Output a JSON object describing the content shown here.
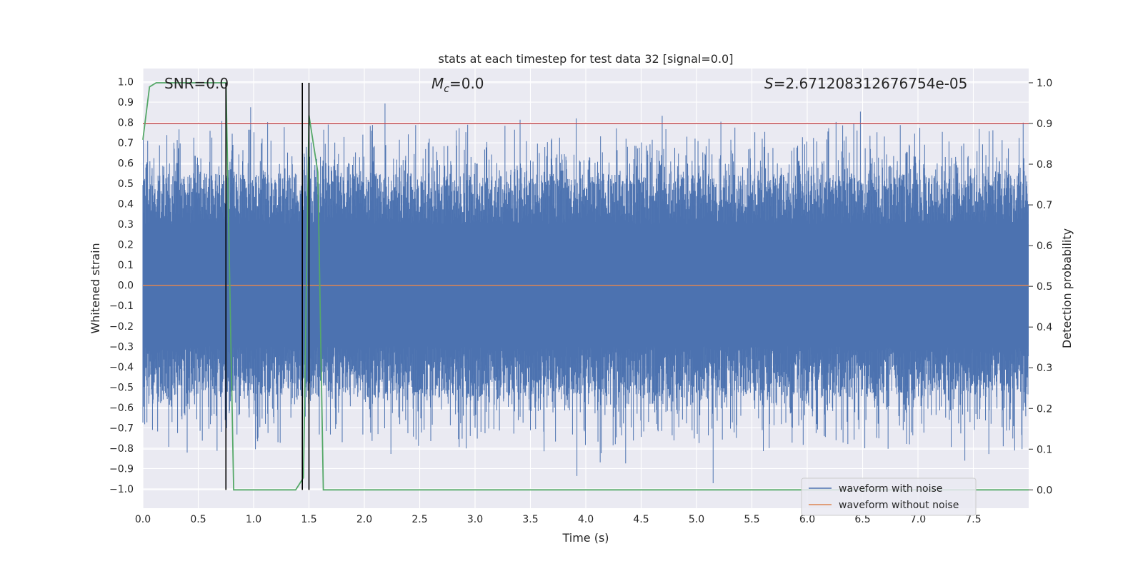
{
  "chart_data": {
    "type": "line",
    "title": "stats at each timestep for test data 32 [signal=0.0]",
    "xlabel": "Time (s)",
    "ylabel": "Whitened strain",
    "y2label": "Detection probability",
    "xlim": [
      0.0,
      8.0
    ],
    "ylim": [
      -1.095,
      1.065
    ],
    "y2lim": [
      -0.045,
      1.035
    ],
    "xticks": [
      "0.0",
      "0.5",
      "1.0",
      "1.5",
      "2.0",
      "2.5",
      "3.0",
      "3.5",
      "4.0",
      "4.5",
      "5.0",
      "5.5",
      "6.0",
      "6.5",
      "7.0",
      "7.5"
    ],
    "xtick_values": [
      0.0,
      0.5,
      1.0,
      1.5,
      2.0,
      2.5,
      3.0,
      3.5,
      4.0,
      4.5,
      5.0,
      5.5,
      6.0,
      6.5,
      7.0,
      7.5
    ],
    "yticks": [
      "1.0",
      "0.9",
      "0.8",
      "0.7",
      "0.6",
      "0.5",
      "0.4",
      "0.3",
      "0.2",
      "0.1",
      "0.0",
      "−0.1",
      "−0.2",
      "−0.3",
      "−0.4",
      "−0.5",
      "−0.6",
      "−0.7",
      "−0.8",
      "−0.9",
      "−1.0"
    ],
    "ytick_values": [
      1.0,
      0.9,
      0.8,
      0.7,
      0.6,
      0.5,
      0.4,
      0.3,
      0.2,
      0.1,
      0.0,
      -0.1,
      -0.2,
      -0.3,
      -0.4,
      -0.5,
      -0.6,
      -0.7,
      -0.8,
      -0.9,
      -1.0
    ],
    "y2ticks": [
      "1.0",
      "0.9",
      "0.8",
      "0.7",
      "0.6",
      "0.5",
      "0.4",
      "0.3",
      "0.2",
      "0.1",
      "0.0"
    ],
    "y2tick_values": [
      1.0,
      0.9,
      0.8,
      0.7,
      0.6,
      0.5,
      0.4,
      0.3,
      0.2,
      0.1,
      0.0
    ],
    "annotations": {
      "snr": "SNR=0.0",
      "mc_symbol": "M",
      "mc_sub": "c",
      "mc_value": "=0.0",
      "s_symbol": "S",
      "s_value": "=2.671208312676754e-05"
    },
    "legend": {
      "position": "lower-right",
      "entries": [
        "waveform with noise",
        "waveform without noise"
      ]
    },
    "series": [
      {
        "name": "waveform with noise",
        "color": "#4c72b0",
        "axis": "left",
        "style": "dense-noise",
        "peak_max": 1.0,
        "trough_min": -1.0
      },
      {
        "name": "waveform without noise",
        "color": "#dd8452",
        "axis": "left",
        "y_constant": 0.0
      },
      {
        "name": "detection probability",
        "color": "#55a868",
        "axis": "right",
        "x": [
          0.0,
          0.06,
          0.12,
          0.5,
          0.75,
          0.82,
          0.9,
          1.38,
          1.45,
          1.5,
          1.58,
          1.63,
          1.7,
          8.0
        ],
        "y": [
          0.86,
          0.99,
          1.0,
          1.0,
          1.0,
          0.0,
          0.0,
          0.0,
          0.03,
          0.92,
          0.78,
          0.0,
          0.0,
          0.0
        ]
      },
      {
        "name": "threshold",
        "color": "#c44e52",
        "axis": "right",
        "y_constant": 0.9
      }
    ],
    "vlines": [
      0.75,
      1.44,
      1.5
    ],
    "colors": {
      "background": "#eaeaf2",
      "grid": "#ffffff",
      "noise": "#4c72b0",
      "clean": "#dd8452",
      "prob": "#55a868",
      "threshold": "#c44e52",
      "vline": "#000000"
    }
  }
}
